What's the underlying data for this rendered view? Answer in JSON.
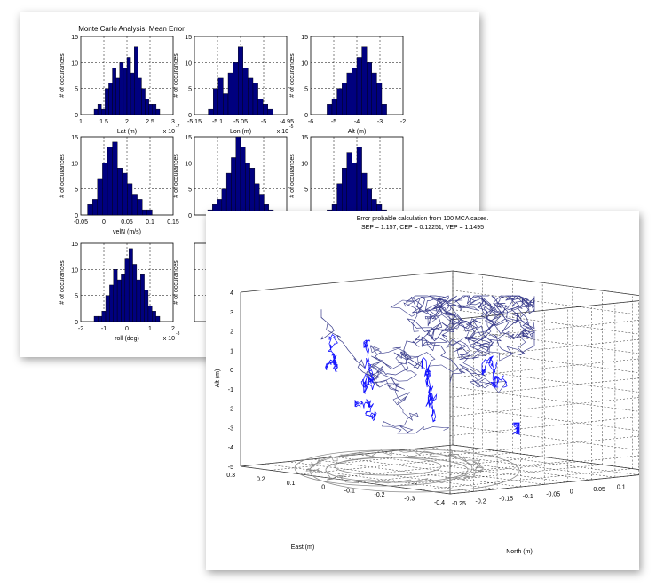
{
  "back_sheet": {
    "title": "Monte Carlo Analysis: Mean Error",
    "histograms": [
      {
        "id": "lat",
        "xlabel": "Lat (m)",
        "ylabel": "# of occurances",
        "xlim": [
          1,
          3
        ],
        "ylim": [
          0,
          15
        ],
        "xticks": [
          "1",
          "1.5",
          "2",
          "2.5",
          "3"
        ],
        "yticks": [
          "0",
          "5",
          "10",
          "15"
        ],
        "exponent": "x 10",
        "exp_power": "-7",
        "bin_counts": [
          1,
          2,
          1,
          5,
          6,
          9,
          7,
          10,
          9,
          11,
          8,
          13,
          7,
          5,
          3,
          2,
          2,
          1
        ]
      },
      {
        "id": "lon",
        "xlabel": "Lon (m)",
        "ylabel": "# of occurances",
        "xlim": [
          -5.15,
          -4.95
        ],
        "ylim": [
          0,
          15
        ],
        "xticks": [
          "-5.15",
          "-5.1",
          "-5.05",
          "-5",
          "-4.95"
        ],
        "yticks": [
          "0",
          "5",
          "10",
          "15"
        ],
        "exponent": "x 10",
        "exp_power": "-5",
        "bin_counts": [
          1,
          5,
          7,
          4,
          8,
          10,
          13,
          9,
          7,
          6,
          3,
          2,
          1
        ]
      },
      {
        "id": "alt",
        "xlabel": "Alt (m)",
        "ylabel": "# of occurances",
        "xlim": [
          -6,
          -2
        ],
        "ylim": [
          0,
          15
        ],
        "xticks": [
          "-6",
          "-5",
          "-4",
          "-3",
          "-2"
        ],
        "yticks": [
          "0",
          "5",
          "10",
          "15"
        ],
        "exponent": "",
        "exp_power": "",
        "bin_counts": [
          2,
          3,
          5,
          6,
          8,
          9,
          11,
          13,
          10,
          8,
          6,
          2
        ]
      },
      {
        "id": "veln",
        "xlabel": "velN (m/s)",
        "ylabel": "# of occurances",
        "xlim": [
          -0.05,
          0.15
        ],
        "ylim": [
          0,
          15
        ],
        "xticks": [
          "-0.05",
          "0",
          "0.05",
          "0.1",
          "0.15"
        ],
        "yticks": [
          "0",
          "5",
          "10",
          "15"
        ],
        "exponent": "",
        "exp_power": "",
        "bin_counts": [
          2,
          3,
          7,
          10,
          13,
          14,
          9,
          8,
          6,
          4,
          3,
          1,
          1
        ]
      },
      {
        "id": "vele",
        "xlabel": "",
        "ylabel": "# of occurances",
        "xlim": [],
        "ylim": [
          0,
          15
        ],
        "xticks": [],
        "yticks": [
          "0",
          "5",
          "10",
          "15"
        ],
        "exponent": "",
        "exp_power": "",
        "bin_counts": [
          1,
          2,
          3,
          5,
          8,
          11,
          15,
          13,
          10,
          9,
          6,
          4,
          2,
          1
        ]
      },
      {
        "id": "veld",
        "xlabel": "",
        "ylabel": "# of occurances",
        "xlim": [],
        "ylim": [
          0,
          15
        ],
        "xticks": [],
        "yticks": [
          "0",
          "5",
          "10",
          "15"
        ],
        "exponent": "",
        "exp_power": "",
        "bin_counts": [
          1,
          2,
          6,
          9,
          12,
          10,
          13,
          8,
          5,
          3,
          2,
          1
        ]
      },
      {
        "id": "roll",
        "xlabel": "roll (deg)",
        "ylabel": "# of occurances",
        "xlim": [
          -2,
          2
        ],
        "ylim": [
          0,
          15
        ],
        "xticks": [
          "-2",
          "-1",
          "0",
          "1",
          "2"
        ],
        "yticks": [
          "0",
          "5",
          "10",
          "15"
        ],
        "exponent": "x 10",
        "exp_power": "-3",
        "bin_counts": [
          1,
          1,
          2,
          5,
          7,
          10,
          8,
          9,
          12,
          14,
          11,
          8,
          9,
          6,
          3,
          2,
          1
        ]
      },
      {
        "id": "pitch",
        "xlabel": "",
        "ylabel": "# of occurances",
        "xlim": [],
        "ylim": [
          0,
          15
        ],
        "xticks": [],
        "yticks": [],
        "exponent": "",
        "exp_power": "",
        "bin_counts": []
      }
    ]
  },
  "front_sheet": {
    "title_line1": "Error probable calculation from 100 MCA cases.",
    "title_line2": "SEP = 1.157,    CEP = 0.12251,    VEP = 1.1495",
    "zlabel": "Alt (m)",
    "xlabel": "East (m)",
    "ylabel": "North (m)",
    "zticks": [
      "4",
      "3",
      "2",
      "1",
      "0",
      "-1",
      "-2",
      "-3",
      "-4",
      "-5"
    ],
    "east_ticks": [
      "0.3",
      "0.2",
      "0.1",
      "0",
      "-0.1",
      "-0.2",
      "-0.3",
      "-0.4"
    ],
    "north_ticks": [
      "-0.25",
      "-0.2",
      "-0.15",
      "-0.1",
      "-0.05",
      "0",
      "0.05",
      "0.1",
      "0.15",
      "0.2"
    ],
    "colors": {
      "trajectory": "#3a3d8c",
      "highlight": "#1414ff",
      "projection": "#8c8c8c",
      "grid": "#333333"
    }
  },
  "chart_data": [
    {
      "type": "bar",
      "title": "Monte Carlo Analysis: Mean Error",
      "xlabel": "Lat (m)",
      "ylabel": "# of occurances",
      "xlim": [
        1,
        3
      ],
      "ylim": [
        0,
        15
      ],
      "scale_note": "x 10^-7",
      "x": [
        1.22,
        1.31,
        1.39,
        1.48,
        1.57,
        1.65,
        1.74,
        1.83,
        1.92,
        2.01,
        2.09,
        2.18,
        2.27,
        2.35,
        2.44,
        2.53,
        2.61,
        2.7
      ],
      "values": [
        1,
        2,
        1,
        5,
        6,
        9,
        7,
        10,
        9,
        11,
        8,
        13,
        7,
        5,
        3,
        2,
        2,
        1
      ],
      "grid": true
    },
    {
      "type": "bar",
      "xlabel": "Lon (m)",
      "ylabel": "# of occurances",
      "xlim": [
        -5.15,
        -4.95
      ],
      "ylim": [
        0,
        15
      ],
      "scale_note": "x 10^-5",
      "x": [
        -5.115,
        -5.108,
        -5.101,
        -5.094,
        -5.087,
        -5.08,
        -5.073,
        -5.066,
        -5.059,
        -5.052,
        -5.045,
        -5.038,
        -5.031
      ],
      "values": [
        1,
        5,
        7,
        4,
        8,
        10,
        13,
        9,
        7,
        6,
        3,
        2,
        1
      ],
      "grid": true
    },
    {
      "type": "bar",
      "xlabel": "Alt (m)",
      "ylabel": "# of occurances",
      "xlim": [
        -6,
        -2
      ],
      "ylim": [
        0,
        15
      ],
      "x": [
        -5.35,
        -4.95,
        -4.75,
        -4.55,
        -4.35,
        -4.15,
        -3.95,
        -3.75,
        -3.55,
        -3.35,
        -3.15,
        -2.95
      ],
      "values": [
        2,
        3,
        5,
        6,
        8,
        9,
        11,
        13,
        10,
        8,
        6,
        2
      ],
      "grid": true
    },
    {
      "type": "bar",
      "xlabel": "velN (m/s)",
      "ylabel": "# of occurances",
      "xlim": [
        -0.05,
        0.15
      ],
      "ylim": [
        0,
        15
      ],
      "x": [
        -0.03,
        -0.022,
        -0.015,
        -0.008,
        -0.001,
        0.006,
        0.013,
        0.02,
        0.027,
        0.034,
        0.041,
        0.048,
        0.1
      ],
      "values": [
        2,
        3,
        7,
        10,
        13,
        14,
        9,
        8,
        6,
        4,
        3,
        1,
        1
      ],
      "grid": true
    },
    {
      "type": "line",
      "title": "Error probable calculation from 100 MCA cases.",
      "subtitle": "SEP = 1.157,    CEP = 0.12251,    VEP = 1.1495",
      "xlabel": "East (m)",
      "ylabel": "North (m)",
      "zlabel": "Alt (m)",
      "xlim": [
        -0.4,
        0.3
      ],
      "ylim": [
        -0.25,
        0.2
      ],
      "zlim": [
        -5,
        4
      ],
      "grid": true
    }
  ]
}
